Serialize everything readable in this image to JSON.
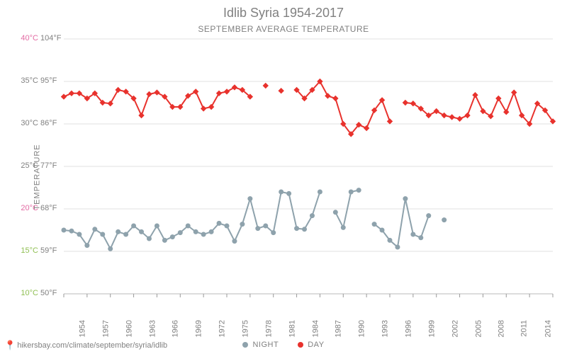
{
  "title": "Idlib Syria 1954-2017",
  "subtitle": "SEPTEMBER AVERAGE TEMPERATURE",
  "ylabel": "TEMPERATURE",
  "source_url": "hikersbay.com/climate/september/syria/idlib",
  "legend": {
    "night_label": "NIGHT",
    "day_label": "DAY"
  },
  "colors": {
    "day_line": "#e8322d",
    "night_line": "#8ea2ac",
    "grid": "#e2e2e2",
    "tick_green": "#8fbf52",
    "tick_pink": "#e36aa3",
    "tick_gray": "#808080",
    "background": "#ffffff"
  },
  "chart": {
    "type": "line",
    "x_years": [
      1954,
      1955,
      1956,
      1957,
      1958,
      1959,
      1960,
      1961,
      1962,
      1963,
      1964,
      1965,
      1966,
      1967,
      1968,
      1969,
      1970,
      1971,
      1972,
      1973,
      1974,
      1975,
      1976,
      1977,
      1978,
      1979,
      1980,
      1981,
      1982,
      1983,
      1984,
      1985,
      1986,
      1987,
      1988,
      1989,
      1990,
      1991,
      1992,
      1993,
      1994,
      1995,
      1996,
      1997,
      1998,
      1999,
      2000,
      2001,
      2002,
      2003,
      2004,
      2005,
      2006,
      2007,
      2008,
      2009,
      2010,
      2011,
      2012,
      2013,
      2014,
      2015,
      2016,
      2017
    ],
    "x_axis": {
      "tick_step": 3,
      "tick_start": 1954,
      "tick_end": 2017,
      "rotation": -90,
      "fontsize": 11
    },
    "y_axis_c": {
      "min": 10,
      "max": 40,
      "ticks": [
        10,
        15,
        20,
        25,
        30,
        35,
        40
      ],
      "tick_colors": [
        "#8fbf52",
        "#8fbf52",
        "#e36aa3",
        "#808080",
        "#808080",
        "#808080",
        "#e36aa3"
      ],
      "fontsize": 11
    },
    "y_axis_f": {
      "ticks_f": [
        "50°F",
        "59°F",
        "68°F",
        "77°F",
        "86°F",
        "95°F",
        "104°F"
      ],
      "fontsize": 11
    },
    "marker": {
      "day": "diamond",
      "night": "circle",
      "size": 5
    },
    "line_width": 2,
    "series": {
      "day": [
        33.2,
        33.6,
        33.6,
        33.0,
        33.6,
        32.5,
        32.4,
        34.0,
        33.8,
        33.0,
        31.0,
        33.5,
        33.7,
        33.2,
        32.0,
        32.0,
        33.3,
        33.8,
        31.8,
        32.0,
        33.6,
        33.8,
        34.3,
        34.0,
        33.2,
        null,
        34.5,
        null,
        33.9,
        null,
        34.0,
        33.0,
        34.0,
        35.0,
        33.3,
        33.0,
        30.0,
        28.8,
        29.9,
        29.5,
        31.6,
        32.8,
        30.3,
        null,
        32.5,
        32.4,
        31.8,
        31.0,
        31.5,
        31.0,
        30.8,
        30.6,
        31.0,
        33.4,
        31.5,
        30.9,
        33.0,
        31.4,
        33.7,
        31.0,
        30.0,
        32.4,
        31.6,
        30.3
      ],
      "night": [
        17.5,
        17.4,
        17.0,
        15.7,
        17.6,
        17.0,
        15.3,
        17.3,
        17.0,
        18.0,
        17.3,
        16.5,
        18.0,
        16.3,
        16.7,
        17.2,
        18.0,
        17.3,
        17.0,
        17.3,
        18.3,
        18.0,
        16.2,
        18.2,
        21.2,
        17.7,
        18.0,
        17.2,
        22.0,
        21.8,
        17.7,
        17.6,
        19.2,
        22.0,
        null,
        19.6,
        17.8,
        22.0,
        22.2,
        null,
        18.2,
        17.5,
        16.3,
        15.5,
        21.2,
        17.0,
        16.6,
        19.2,
        null,
        18.7,
        null,
        null,
        null,
        null,
        null,
        null,
        null,
        null,
        null,
        null,
        null,
        null,
        null,
        null
      ]
    }
  }
}
